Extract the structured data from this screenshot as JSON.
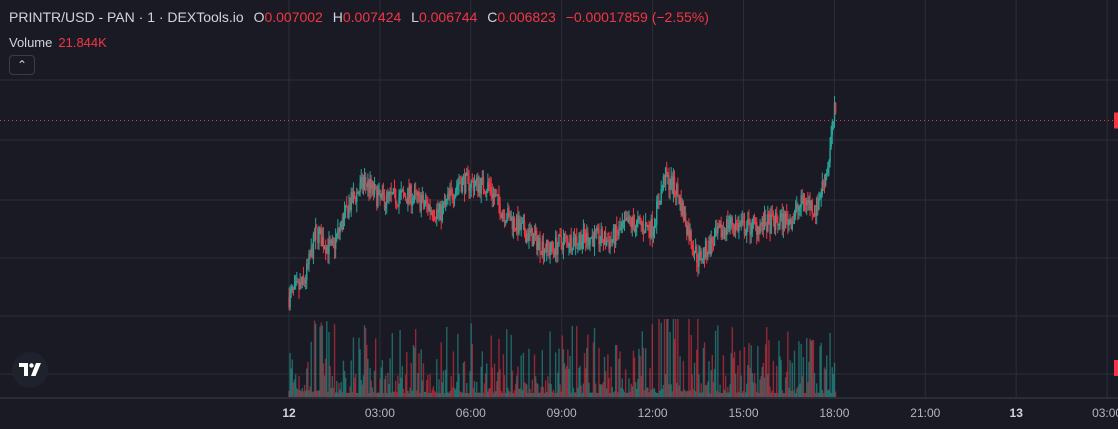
{
  "legend": {
    "symbol": "PRINTR/USD - PAN · 1 · DEXTools.io",
    "open_key": "O",
    "open": "0.007002",
    "high_key": "H",
    "high": "0.007424",
    "low_key": "L",
    "low": "0.006744",
    "close_key": "C",
    "close": "0.006823",
    "change": "−0.00017859 (−2.55%)"
  },
  "volume": {
    "label": "Volume",
    "value": "21.844K"
  },
  "collapse_button": {
    "icon": "chevron-up-icon",
    "glyph": "⌃"
  },
  "logo": {
    "icon": "tradingview-logo-icon"
  },
  "colors": {
    "up": "#26a69a",
    "down": "#f23645",
    "background": "#1a1a24",
    "grid": "#2a2d38",
    "price_line": "#f23645"
  },
  "chart_data": {
    "type": "candlestick",
    "x_ticks": [
      {
        "label": "12",
        "hour": 0,
        "bold": true
      },
      {
        "label": "03:00",
        "hour": 3
      },
      {
        "label": "06:00",
        "hour": 6
      },
      {
        "label": "09:00",
        "hour": 9
      },
      {
        "label": "12:00",
        "hour": 12
      },
      {
        "label": "15:00",
        "hour": 15
      },
      {
        "label": "18:00",
        "hour": 18
      },
      {
        "label": "21:00",
        "hour": 21
      },
      {
        "label": "13",
        "hour": 24,
        "bold": true
      },
      {
        "label": "03:00",
        "hour": 27
      }
    ],
    "last_close": 0.006823,
    "grid": true,
    "price_trend": [
      {
        "hour": 0.0,
        "price": 0.003
      },
      {
        "hour": 0.5,
        "price": 0.0033
      },
      {
        "hour": 0.9,
        "price": 0.0044
      },
      {
        "hour": 1.4,
        "price": 0.004
      },
      {
        "hour": 2.0,
        "price": 0.005
      },
      {
        "hour": 2.5,
        "price": 0.0055
      },
      {
        "hour": 3.0,
        "price": 0.0051
      },
      {
        "hour": 4.0,
        "price": 0.0052
      },
      {
        "hour": 5.0,
        "price": 0.0048
      },
      {
        "hour": 5.6,
        "price": 0.0055
      },
      {
        "hour": 6.6,
        "price": 0.0054
      },
      {
        "hour": 7.0,
        "price": 0.0049
      },
      {
        "hour": 7.6,
        "price": 0.0045
      },
      {
        "hour": 8.0,
        "price": 0.0043
      },
      {
        "hour": 8.6,
        "price": 0.004
      },
      {
        "hour": 9.0,
        "price": 0.0042
      },
      {
        "hour": 10.0,
        "price": 0.0043
      },
      {
        "hour": 10.6,
        "price": 0.0042
      },
      {
        "hour": 11.2,
        "price": 0.0046
      },
      {
        "hour": 12.0,
        "price": 0.0045
      },
      {
        "hour": 12.4,
        "price": 0.0056
      },
      {
        "hour": 12.8,
        "price": 0.0053
      },
      {
        "hour": 13.2,
        "price": 0.0044
      },
      {
        "hour": 13.5,
        "price": 0.0038
      },
      {
        "hour": 14.0,
        "price": 0.0042
      },
      {
        "hour": 14.5,
        "price": 0.0046
      },
      {
        "hour": 15.0,
        "price": 0.0045
      },
      {
        "hour": 16.0,
        "price": 0.0046
      },
      {
        "hour": 16.6,
        "price": 0.0047
      },
      {
        "hour": 17.0,
        "price": 0.0051
      },
      {
        "hour": 17.4,
        "price": 0.0049
      },
      {
        "hour": 17.8,
        "price": 0.0059
      },
      {
        "hour": 18.0,
        "price": 0.007
      },
      {
        "hour": 18.05,
        "price": 0.00682
      }
    ]
  }
}
